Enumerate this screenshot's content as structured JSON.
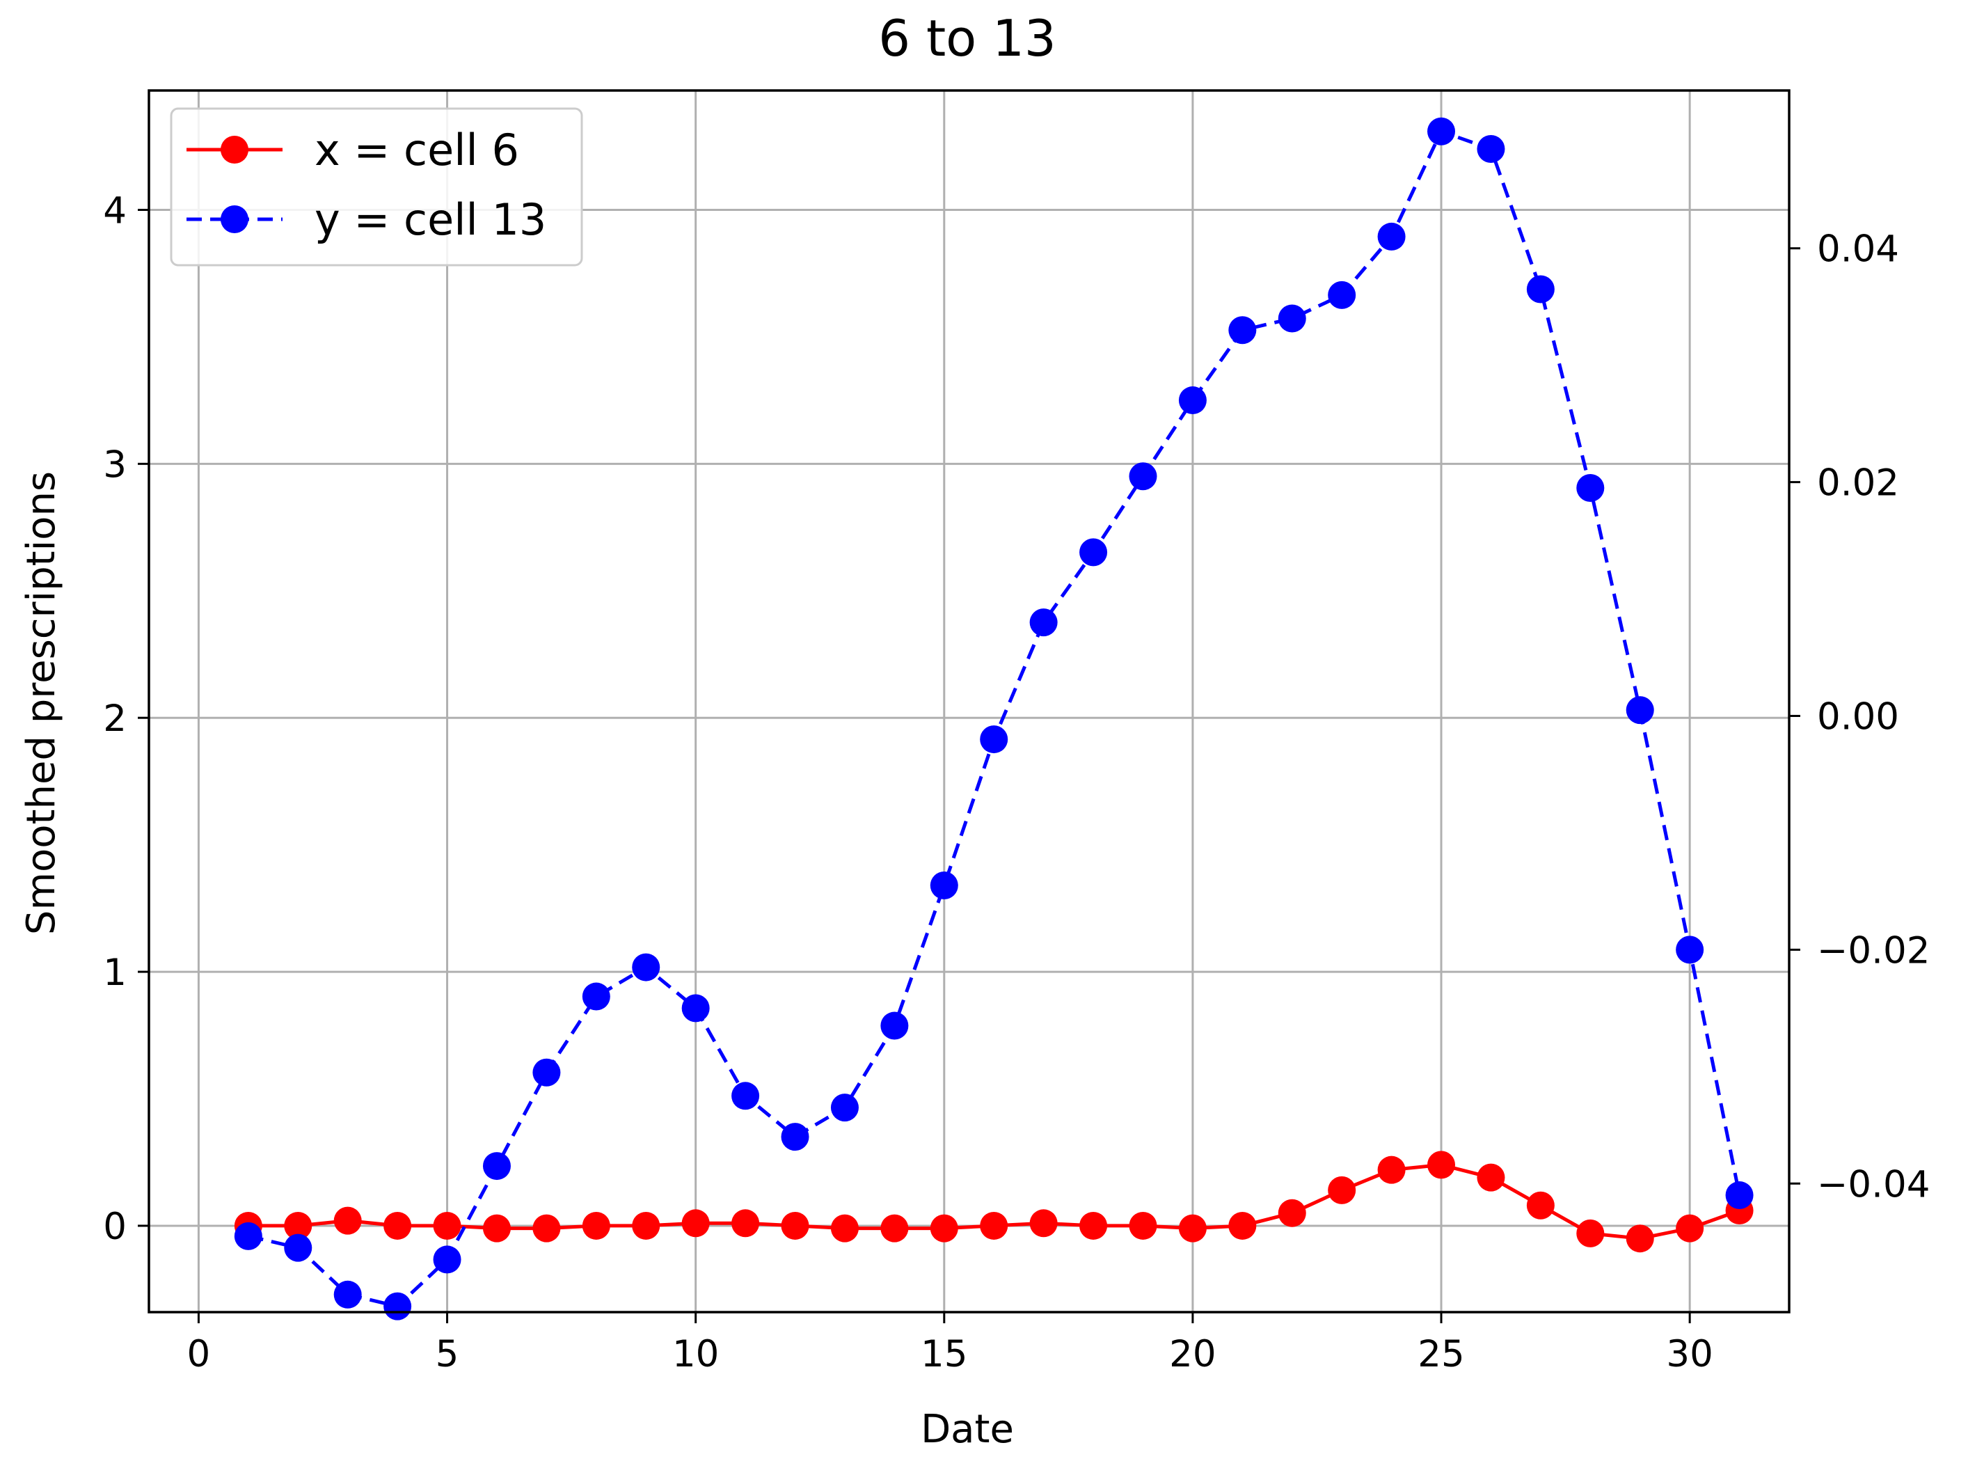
{
  "chart_data": {
    "type": "line",
    "title": "6 to 13",
    "xlabel": "Date",
    "ylabel": "Smoothed prescriptions",
    "xlim": [
      -1,
      32
    ],
    "ylim": [
      -0.34,
      4.47
    ],
    "y2lim": [
      -0.051,
      0.0535
    ],
    "grid": true,
    "legend_position": "upper-left",
    "x_ticks": [
      0,
      5,
      10,
      15,
      20,
      25,
      30
    ],
    "x_tick_labels": [
      "0",
      "5",
      "10",
      "15",
      "20",
      "25",
      "30"
    ],
    "y_ticks": [
      0,
      1,
      2,
      3,
      4
    ],
    "y_tick_labels": [
      "0",
      "1",
      "2",
      "3",
      "4"
    ],
    "y2_ticks": [
      -0.04,
      -0.02,
      0.0,
      0.02,
      0.04
    ],
    "y2_tick_labels": [
      "−0.04",
      "−0.02",
      "0.00",
      "0.02",
      "0.04"
    ],
    "x": [
      1,
      2,
      3,
      4,
      5,
      6,
      7,
      8,
      9,
      10,
      11,
      12,
      13,
      14,
      15,
      16,
      17,
      18,
      19,
      20,
      21,
      22,
      23,
      24,
      25,
      26,
      27,
      28,
      29,
      30,
      31
    ],
    "series": [
      {
        "name": "x = cell 6",
        "color": "#ff0000",
        "linestyle": "solid",
        "marker": "circle",
        "axis": "left",
        "values": [
          0.0,
          0.0,
          0.02,
          0.0,
          0.0,
          -0.01,
          -0.01,
          0.0,
          0.0,
          0.01,
          0.01,
          0.0,
          -0.01,
          -0.01,
          -0.01,
          0.0,
          0.01,
          0.0,
          0.0,
          -0.01,
          0.0,
          0.05,
          0.14,
          0.22,
          0.24,
          0.19,
          0.08,
          -0.03,
          -0.05,
          -0.01,
          0.06
        ]
      },
      {
        "name": "y = cell 13",
        "color": "#0000ff",
        "linestyle": "dashed",
        "marker": "circle",
        "axis": "right",
        "values": [
          -0.0445,
          -0.0455,
          -0.0495,
          -0.0505,
          -0.0465,
          -0.0385,
          -0.0305,
          -0.024,
          -0.0215,
          -0.025,
          -0.0325,
          -0.036,
          -0.0335,
          -0.0265,
          -0.0145,
          -0.002,
          0.008,
          0.014,
          0.0205,
          0.027,
          0.033,
          0.034,
          0.036,
          0.041,
          0.05,
          0.0485,
          0.0365,
          0.0195,
          0.0005,
          -0.02,
          -0.041
        ]
      }
    ]
  }
}
